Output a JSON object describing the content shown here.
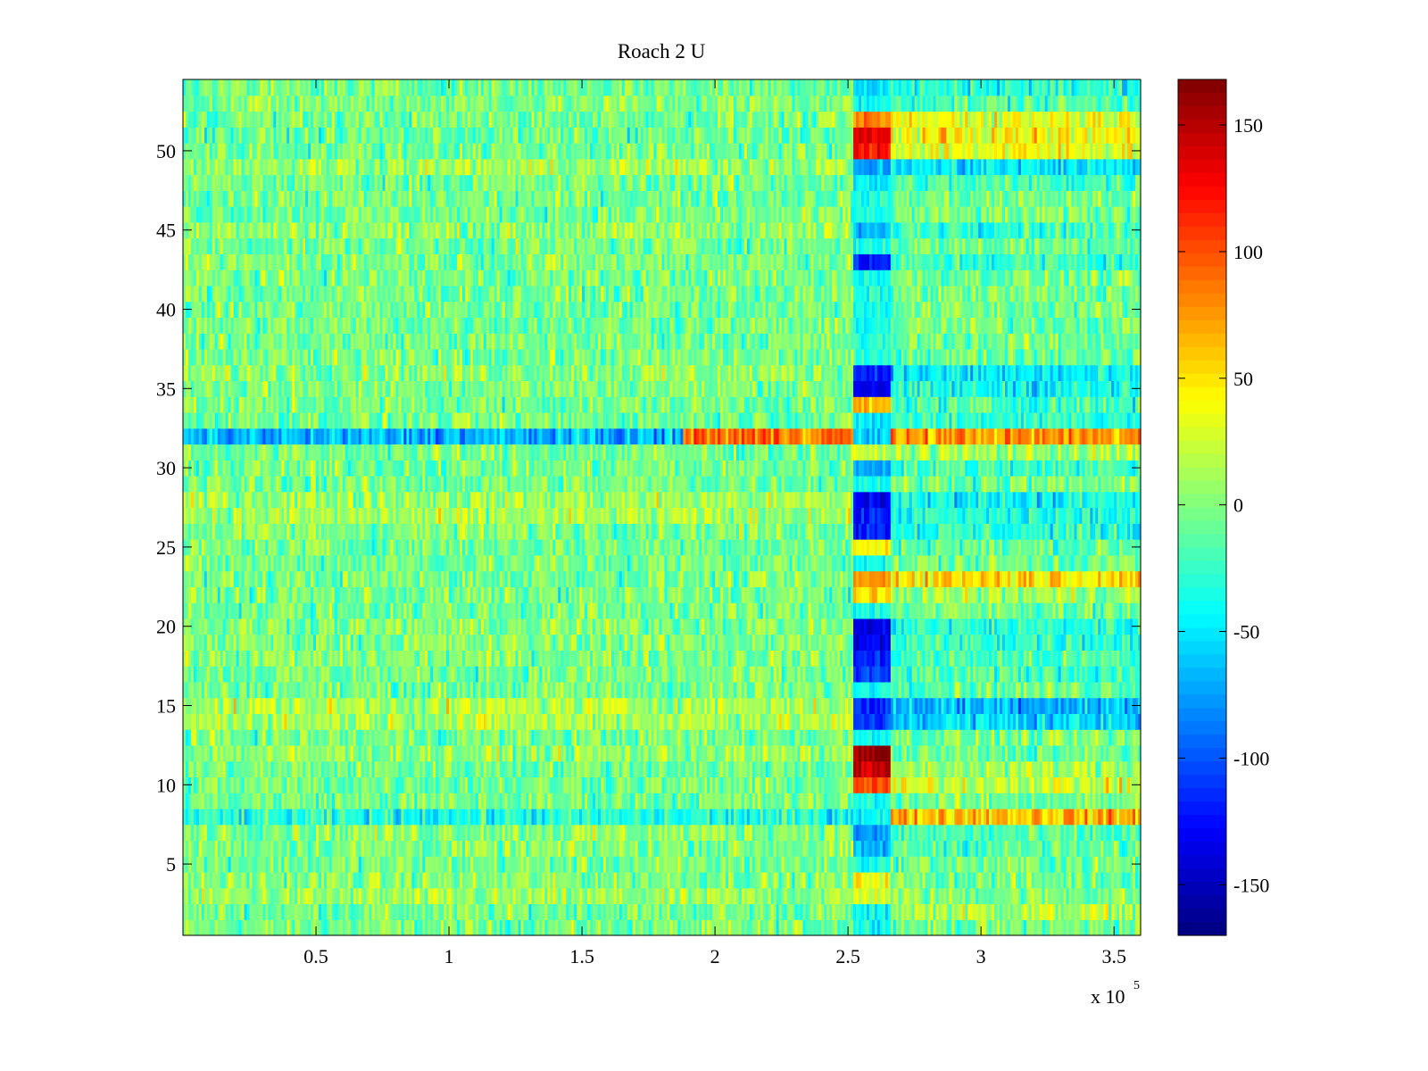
{
  "chart_data": {
    "type": "heatmap",
    "title": "Roach 2 U",
    "xlabel": "",
    "ylabel": "",
    "x_multiplier_label": {
      "base": "x 10",
      "exponent": "5"
    },
    "xlim": [
      0,
      3.6
    ],
    "ylim": [
      0.5,
      54.5
    ],
    "x_ticks": [
      0.5,
      1,
      1.5,
      2,
      2.5,
      3,
      3.5
    ],
    "x_tick_labels": [
      "0.5",
      "1",
      "1.5",
      "2",
      "2.5",
      "3",
      "3.5"
    ],
    "y_ticks": [
      5,
      10,
      15,
      20,
      25,
      30,
      35,
      40,
      45,
      50
    ],
    "y_tick_labels": [
      "5",
      "10",
      "15",
      "20",
      "25",
      "30",
      "35",
      "40",
      "45",
      "50"
    ],
    "rows": 54,
    "colormap": "jet",
    "clim": [
      -170,
      168
    ],
    "colorbar_ticks": [
      150,
      100,
      50,
      0,
      -50,
      -100,
      -150
    ],
    "colorbar_tick_labels": [
      "150",
      "100",
      "50",
      "0",
      "-50",
      "-100",
      "-150"
    ],
    "event_x": 2.52,
    "baseline_value": -5,
    "row_features": [
      {
        "row": 54,
        "early": 0,
        "event": -55,
        "post": -30
      },
      {
        "row": 53,
        "early": 5,
        "event": -40,
        "post": -15
      },
      {
        "row": 52,
        "early": 0,
        "event": 80,
        "post": 35
      },
      {
        "row": 51,
        "early": -5,
        "event": 130,
        "post": 40
      },
      {
        "row": 50,
        "early": 0,
        "event": 120,
        "post": 35
      },
      {
        "row": 49,
        "early": 15,
        "event": -75,
        "post": -50
      },
      {
        "row": 48,
        "early": 0,
        "event": -50,
        "post": -20
      },
      {
        "row": 45,
        "early": 10,
        "event": -70,
        "post": -20
      },
      {
        "row": 43,
        "early": 5,
        "event": -120,
        "post": -25
      },
      {
        "row": 36,
        "early": 10,
        "event": -115,
        "post": -50
      },
      {
        "row": 35,
        "early": 5,
        "event": -130,
        "post": -40
      },
      {
        "row": 34,
        "early": 0,
        "event": 60,
        "post": -20
      },
      {
        "row": 33,
        "early": 0,
        "event": -50,
        "post": -25
      },
      {
        "row": 32,
        "early": -65,
        "mid": 90,
        "event": -60,
        "post": 75
      },
      {
        "row": 31,
        "early": 0,
        "event": 20,
        "post": 10
      },
      {
        "row": 30,
        "early": 0,
        "event": -70,
        "post": -20
      },
      {
        "row": 28,
        "early": 15,
        "event": -130,
        "post": -40
      },
      {
        "row": 27,
        "early": 15,
        "event": -120,
        "post": -35
      },
      {
        "row": 26,
        "early": 5,
        "event": -115,
        "post": -30
      },
      {
        "row": 25,
        "early": 0,
        "event": 40,
        "post": -10
      },
      {
        "row": 23,
        "early": 0,
        "event": 75,
        "post": 55
      },
      {
        "row": 22,
        "early": 0,
        "event": 45,
        "post": 10
      },
      {
        "row": 20,
        "early": 5,
        "event": -140,
        "post": -30
      },
      {
        "row": 19,
        "early": 5,
        "event": -135,
        "post": -25
      },
      {
        "row": 18,
        "early": 5,
        "event": -120,
        "post": -20
      },
      {
        "row": 17,
        "early": 0,
        "event": -110,
        "post": -20
      },
      {
        "row": 15,
        "early": 20,
        "event": -115,
        "post": -65
      },
      {
        "row": 14,
        "early": 20,
        "event": -110,
        "post": -55
      },
      {
        "row": 12,
        "early": 10,
        "event": 165,
        "post": -10
      },
      {
        "row": 11,
        "early": 0,
        "event": 140,
        "post": 10
      },
      {
        "row": 10,
        "early": 0,
        "event": 100,
        "post": 25
      },
      {
        "row": 8,
        "early": -30,
        "event": -40,
        "post": 65
      },
      {
        "row": 7,
        "early": 10,
        "event": -80,
        "post": -20
      },
      {
        "row": 6,
        "early": 5,
        "event": -70,
        "post": -15
      },
      {
        "row": 4,
        "early": 5,
        "event": 40,
        "post": -5
      },
      {
        "row": 3,
        "early": 10,
        "event": 30,
        "post": 0
      },
      {
        "row": 2,
        "early": 0,
        "event": -45,
        "post": 15
      }
    ]
  }
}
